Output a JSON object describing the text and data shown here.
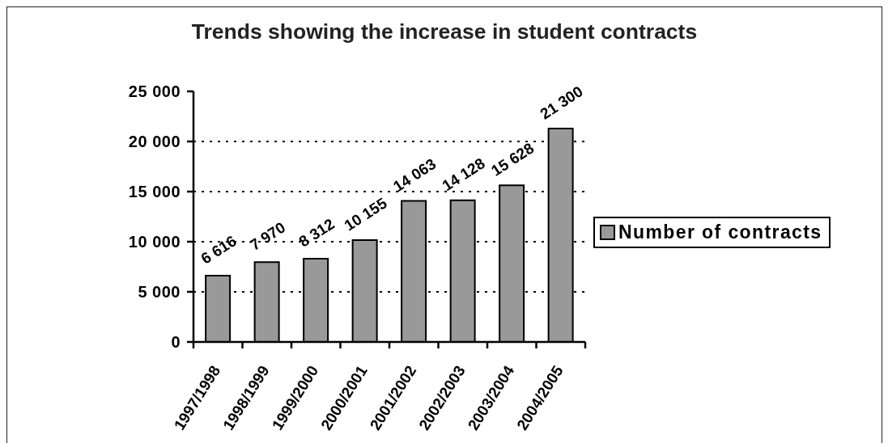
{
  "chart_data": {
    "type": "bar",
    "title": "Trends showing the increase in student contracts",
    "categories": [
      "1997/1998",
      "1998/1999",
      "1999/2000",
      "2000/2001",
      "2001/2002",
      "2002/2003",
      "2003/2004",
      "2004/2005"
    ],
    "series": [
      {
        "name": "Number of contracts",
        "color": "#999999",
        "values": [
          6616,
          7970,
          8312,
          10155,
          14063,
          14128,
          15628,
          21300
        ],
        "value_labels": [
          "6 616",
          "7 970",
          "8 312",
          "10 155",
          "14 063",
          "14 128",
          "15 628",
          "21 300"
        ]
      }
    ],
    "ylim": [
      0,
      25000
    ],
    "yticks": [
      0,
      {
        "value": 5000,
        "label": "5 000"
      },
      {
        "value": 10000,
        "label": "10 000"
      },
      {
        "value": 15000,
        "label": "15 000"
      },
      {
        "value": 20000,
        "label": "20 000"
      },
      {
        "value": 25000,
        "label": "25 000"
      }
    ],
    "grid": "y",
    "legend": "right"
  }
}
